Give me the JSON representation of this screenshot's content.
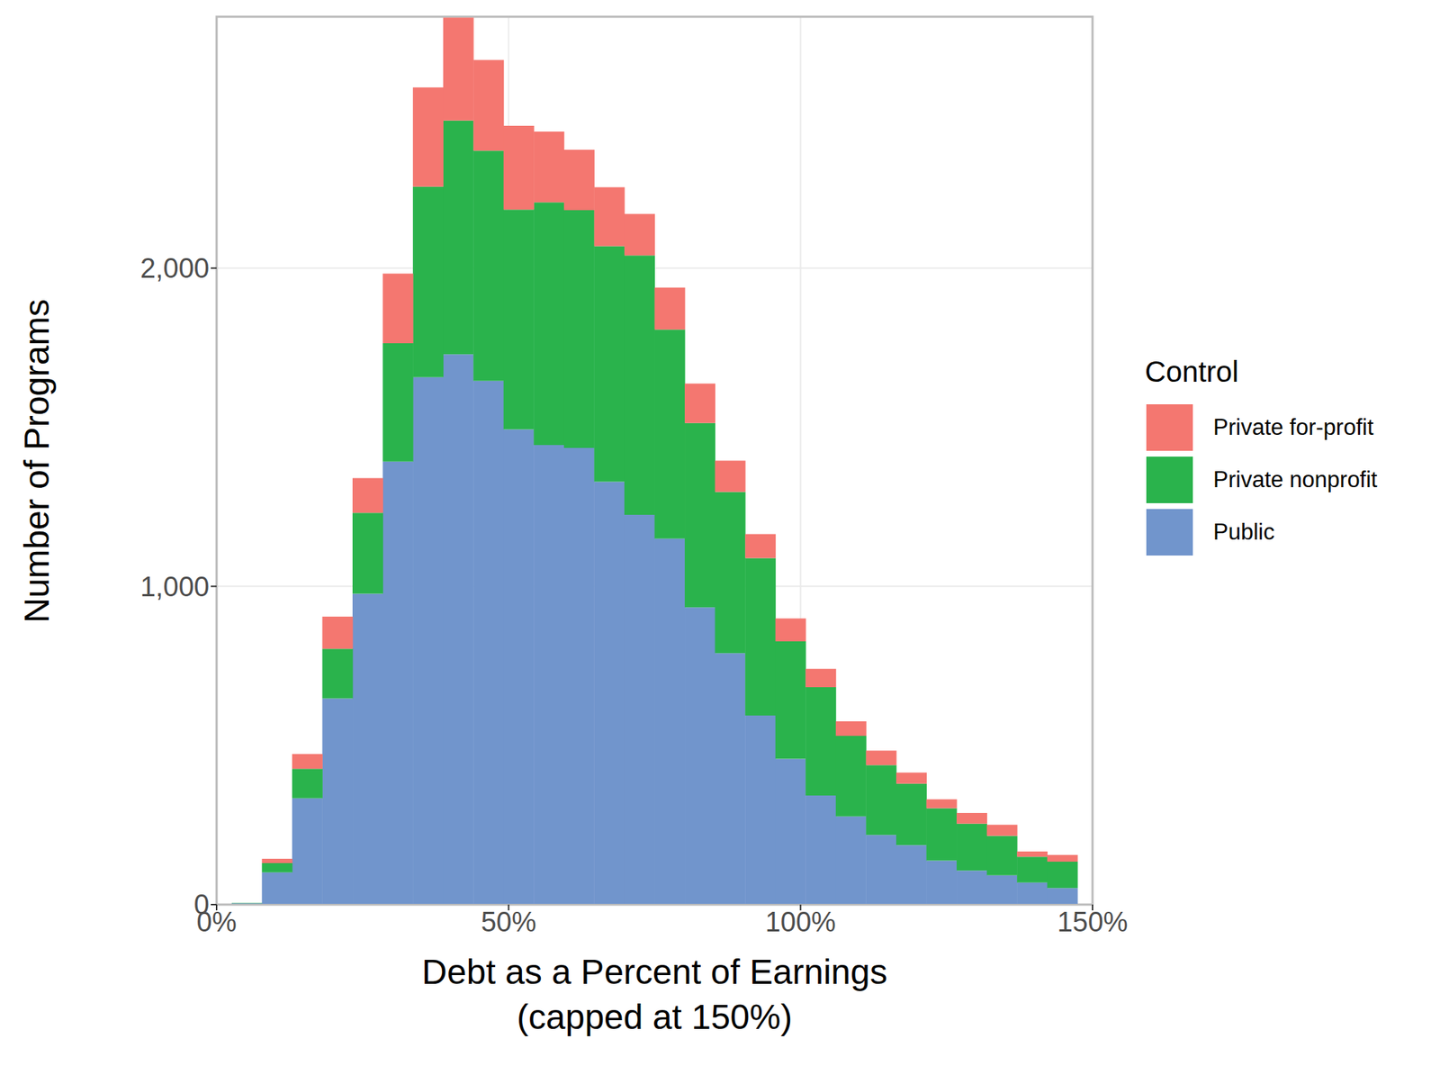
{
  "chart_data": {
    "type": "histogram",
    "x_label": "Debt as a Percent of Earnings\n(capped at 150%)",
    "y_label": "Number of Programs",
    "legend_title": "Control",
    "legend": "right",
    "stacked": true,
    "grid": true,
    "bins": [
      2.59,
      7.76,
      12.93,
      18.1,
      23.28,
      28.45,
      33.62,
      38.79,
      43.97,
      49.14,
      54.31,
      59.48,
      64.66,
      69.83,
      75.0,
      80.17,
      85.34,
      90.52,
      95.69,
      100.86,
      106.03,
      111.21,
      116.38,
      121.55,
      126.72,
      131.9,
      137.07,
      142.24,
      147.41
    ],
    "series": [
      {
        "name": "Private for-profit",
        "color": "#F47770",
        "values": [
          0,
          14,
          46,
          101,
          109,
          219,
          312,
          323,
          285,
          263,
          222,
          190,
          185,
          130,
          132,
          124,
          98,
          75,
          72,
          58,
          46,
          46,
          35,
          28,
          34,
          35,
          17,
          21
        ]
      },
      {
        "name": "Private nonprofit",
        "color": "#2AB34C",
        "values": [
          1,
          29,
          93,
          156,
          254,
          372,
          599,
          735,
          723,
          691,
          763,
          747,
          740,
          815,
          657,
          579,
          507,
          495,
          369,
          340,
          253,
          219,
          193,
          165,
          147,
          124,
          81,
          83
        ]
      },
      {
        "name": "Public",
        "color": "#7195CC",
        "values": [
          4,
          101,
          334,
          648,
          977,
          1392,
          1657,
          1729,
          1646,
          1493,
          1444,
          1435,
          1329,
          1225,
          1150,
          934,
          790,
          594,
          458,
          343,
          277,
          219,
          187,
          138,
          107,
          92,
          69,
          52
        ]
      }
    ],
    "xlim": [
      0,
      150
    ],
    "xticks": [
      {
        "value": 0,
        "label": "0%"
      },
      {
        "value": 50,
        "label": "50%"
      },
      {
        "value": 100,
        "label": "100%"
      },
      {
        "value": 150,
        "label": "150%"
      }
    ],
    "ylim": [
      0,
      2790
    ],
    "yticks": [
      0,
      {
        "value": 1000,
        "label": "1,000"
      },
      {
        "value": 2000,
        "label": "2,000"
      }
    ]
  }
}
